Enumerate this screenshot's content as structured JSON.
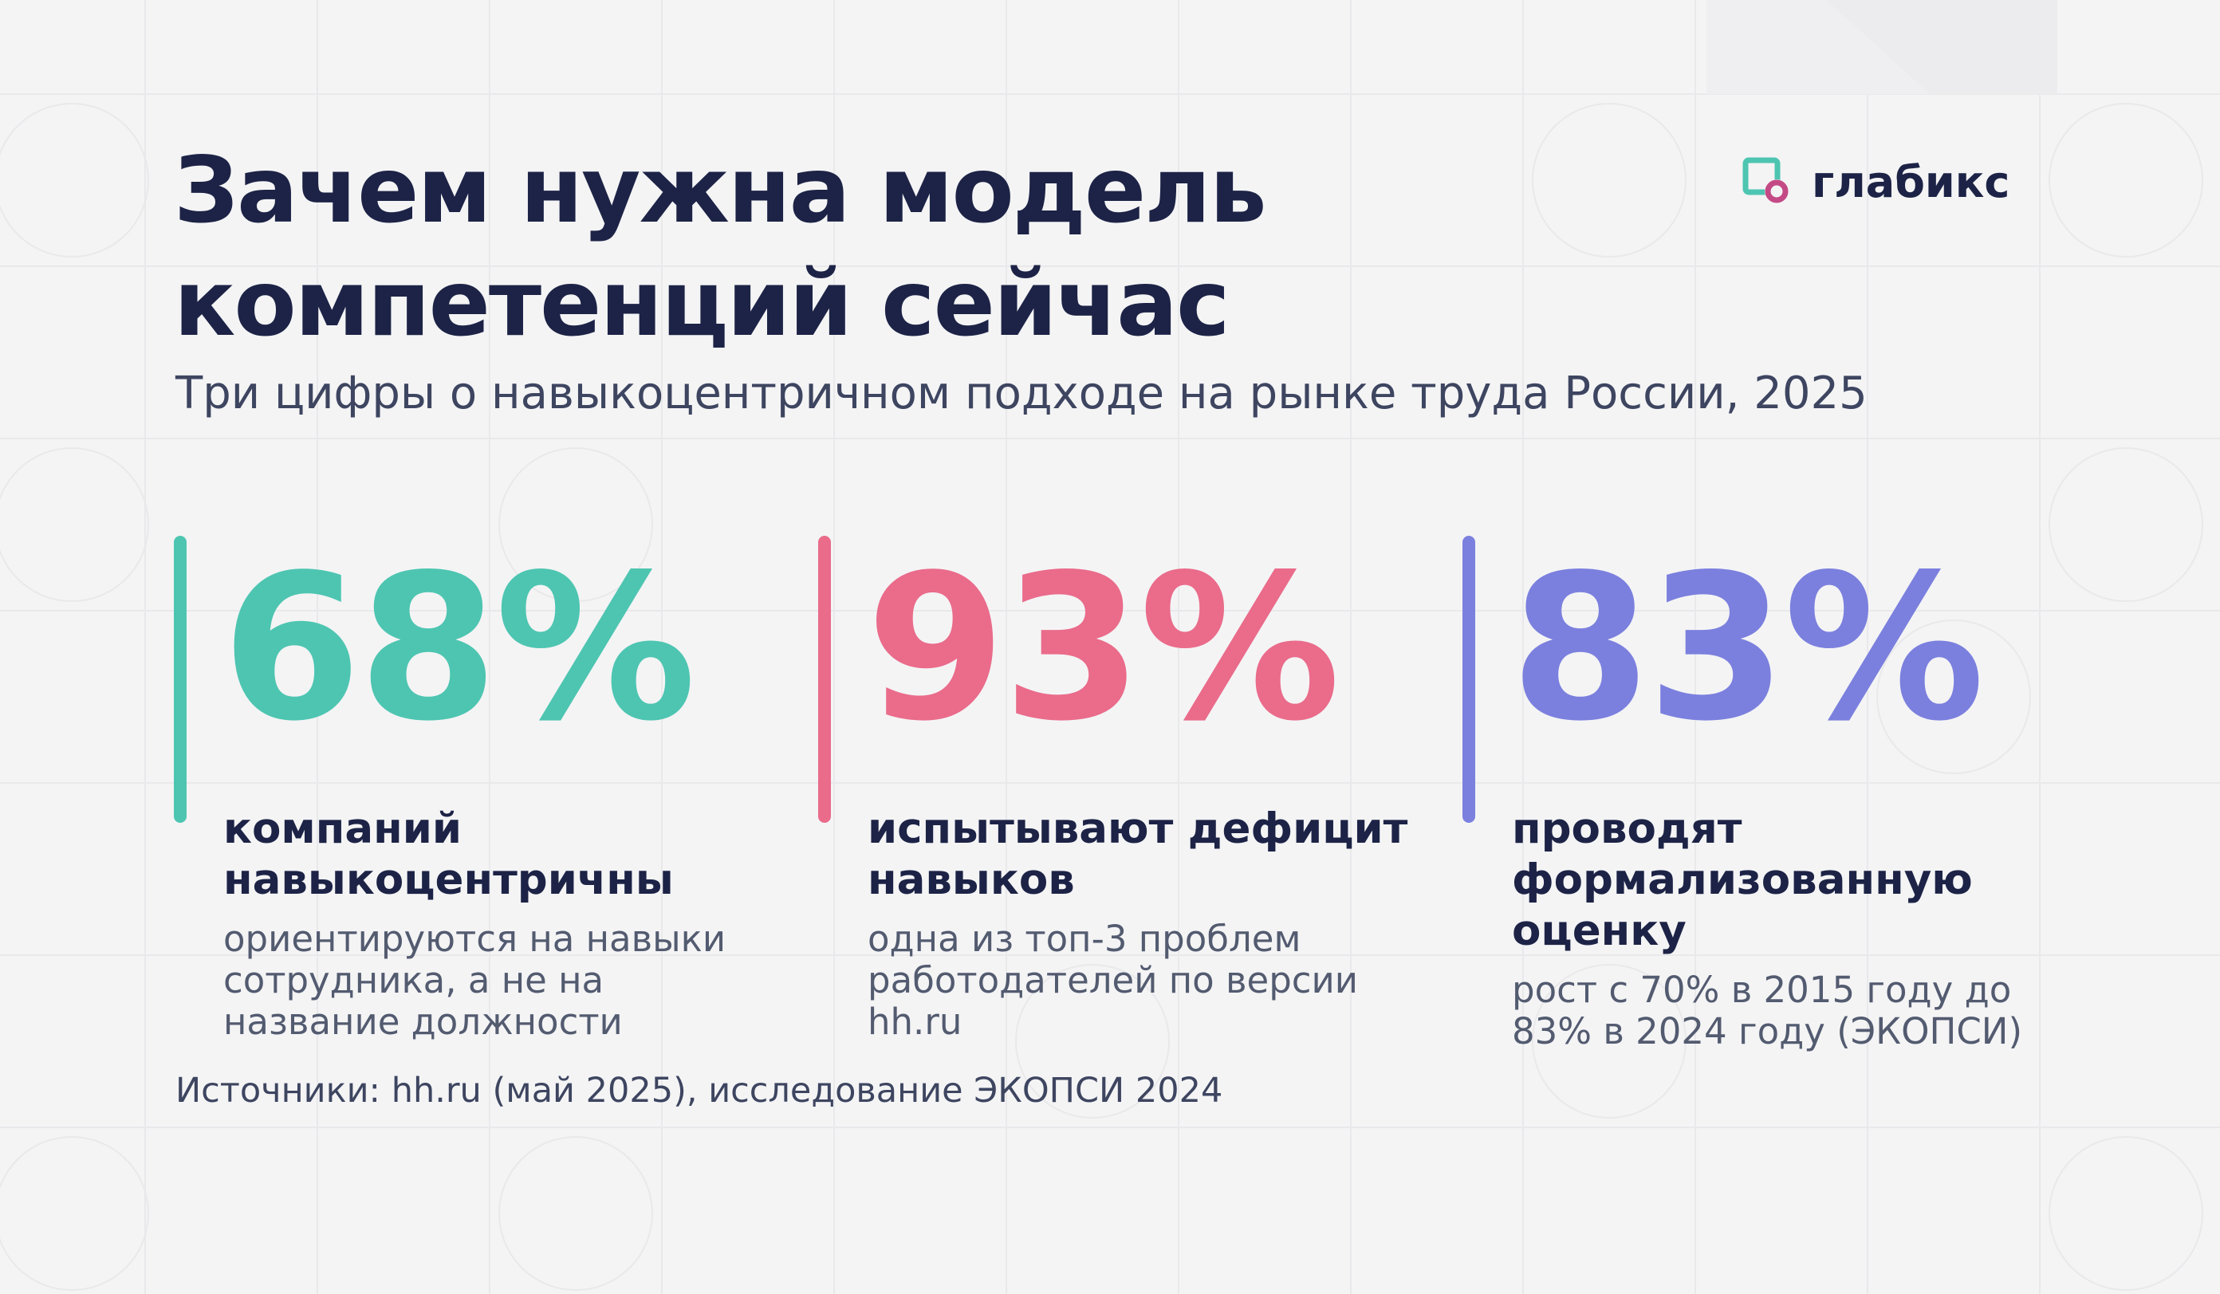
{
  "title": {
    "line1": "Зачем нужна модель",
    "line2": "компетенций сейчас"
  },
  "subtitle": "Три цифры о навыкоцентричном подходе на рынке труда России, 2025",
  "logo": {
    "text": "глабикс",
    "icon": "glabix-logo-icon"
  },
  "stats": [
    {
      "value": "68%",
      "label": "компаний навыкоцентричны",
      "description": "ориентируются на навыки сотрудника, а не на название должности",
      "color": "#4dc5b1"
    },
    {
      "value": "93%",
      "label": "испытывают дефицит навыков",
      "description": "одна из топ-3 проблем работодателей по версии hh.ru",
      "color": "#ea6b8a"
    },
    {
      "value": "83%",
      "label": "проводят формализованную оценку",
      "description": "рост с 70% в 2015 году до 83% в 2024 году (ЭКОПСИ)",
      "color": "#7b80de"
    }
  ],
  "sources": "Источники: hh.ru (май 2025), исследование ЭКОПСИ 2024",
  "colors": {
    "background": "#f4f4f5",
    "heading": "#1c2346",
    "body_text": "#535b70"
  }
}
